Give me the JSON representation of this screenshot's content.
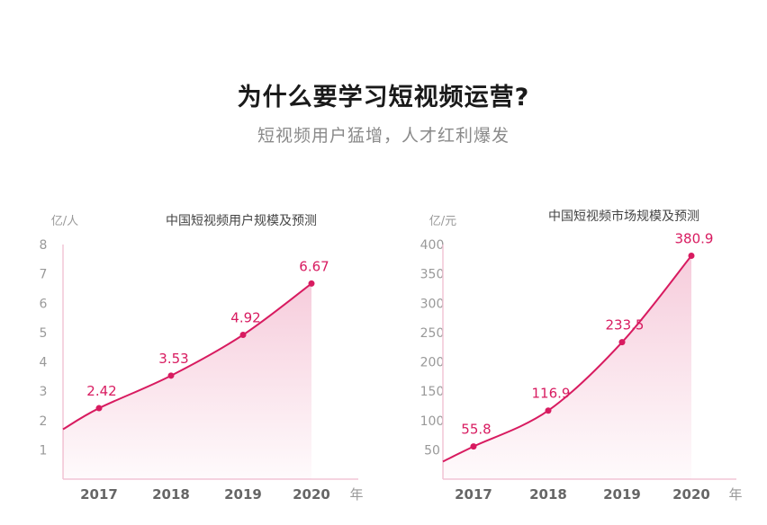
{
  "page": {
    "title": "为什么要学习短视频运营?",
    "subtitle": "短视频用户猛增，人才红利爆发"
  },
  "colors": {
    "accent": "#d81b60",
    "axis": "#f2c6d6",
    "tick": "#999999",
    "year": "#666666"
  },
  "chart_data": [
    {
      "type": "area",
      "title": "中国短视频用户规模及预测",
      "unit_label": "亿/人",
      "x_suffix": "年",
      "y_ticks": [
        1,
        2,
        3,
        4,
        5,
        6,
        7,
        8
      ],
      "ylim": [
        0,
        8
      ],
      "categories": [
        "2017",
        "2018",
        "2019",
        "2020"
      ],
      "values": [
        2.42,
        3.53,
        4.92,
        6.67
      ],
      "value_labels": [
        "2.42",
        "3.53",
        "4.92",
        "6.67"
      ],
      "start_value": 1.7
    },
    {
      "type": "area",
      "title": "中国短视频市场规模及预测",
      "unit_label": "亿/元",
      "x_suffix": "年",
      "y_ticks": [
        50,
        100,
        150,
        200,
        250,
        300,
        350,
        400
      ],
      "ylim": [
        0,
        400
      ],
      "categories": [
        "2017",
        "2018",
        "2019",
        "2020"
      ],
      "values": [
        55.8,
        116.9,
        233.5,
        380.9
      ],
      "value_labels": [
        "55.8",
        "116.9",
        "233.5",
        "380.9"
      ],
      "start_value": 30
    }
  ]
}
